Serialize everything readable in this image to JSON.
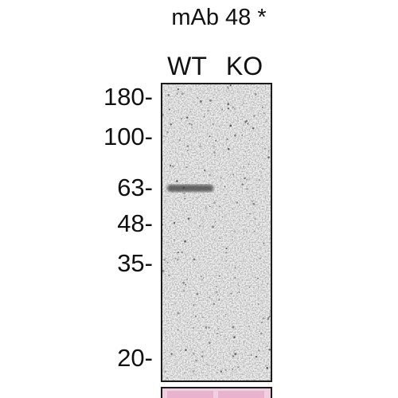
{
  "figure": {
    "antibody_label": "mAb 48 *",
    "lanes": [
      {
        "label": "WT",
        "band_intensity": 0.75
      },
      {
        "label": "KO",
        "band_intensity": 0.0
      }
    ],
    "markers": [
      {
        "label": "180-",
        "kda": 180
      },
      {
        "label": "100-",
        "kda": 100
      },
      {
        "label": "63-",
        "kda": 63
      },
      {
        "label": "48-",
        "kda": 48
      },
      {
        "label": "35-",
        "kda": 35
      },
      {
        "label": "20-",
        "kda": 20
      }
    ],
    "band": {
      "lane": "WT",
      "kda": 63
    },
    "colors": {
      "blot_background": "#eeeeee",
      "band": "#3a3a3a",
      "frame": "#1a1a1a",
      "ponceau": "#f1cfe0",
      "ponceau_lane": "#e9b2cf"
    }
  }
}
